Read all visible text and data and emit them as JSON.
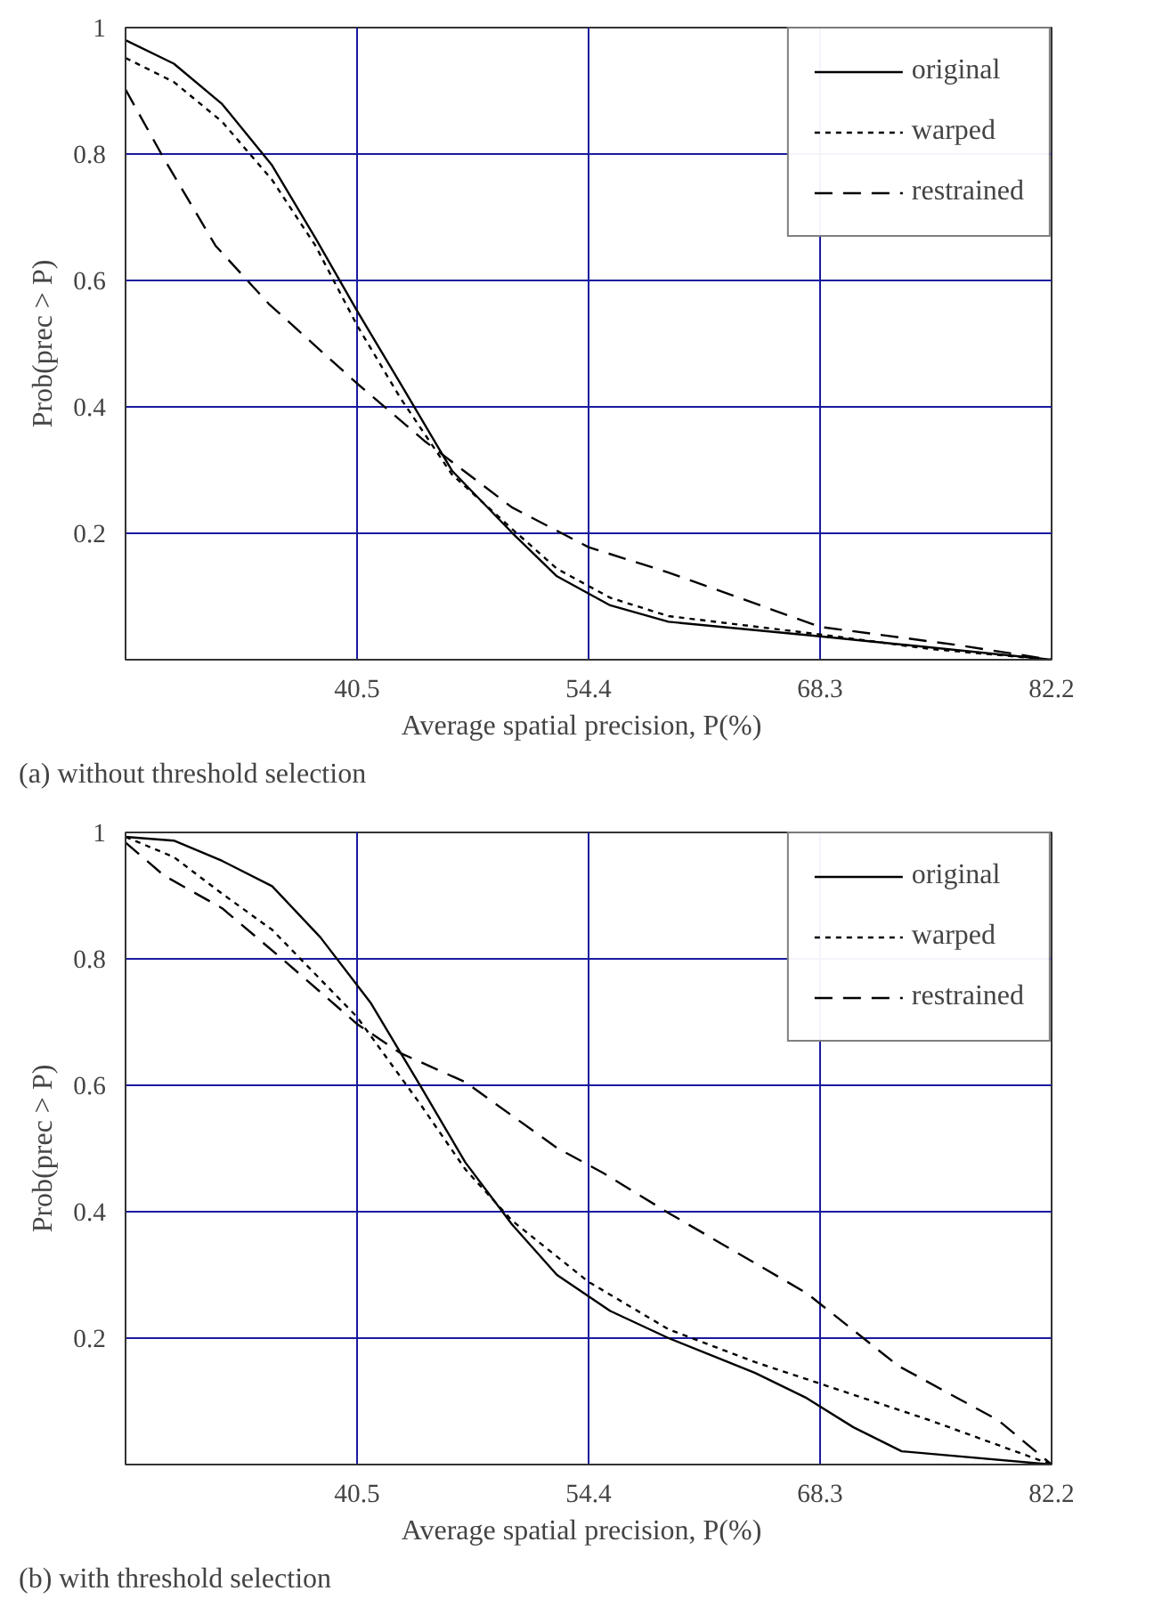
{
  "chart_data": [
    {
      "type": "line",
      "xlabel": "Average spatial  precision,  P(%)",
      "ylabel": "Prob(prec > P)",
      "annotations": [
        "(a) without threshold selection"
      ],
      "xlim": [
        26.6,
        82.2
      ],
      "ylim": [
        0,
        1
      ],
      "xticks": [
        40.5,
        54.4,
        68.3,
        82.2
      ],
      "yticks": [
        0.2,
        0.4,
        0.6,
        0.8,
        1
      ],
      "grid": true,
      "legend": "top right",
      "series": [
        {
          "name": "original",
          "color": "#000000",
          "line_style": "solid",
          "x": [
            26.6,
            29.5,
            32.4,
            35.4,
            38.0,
            40.5,
            43.1,
            46.2,
            49.8,
            52.5,
            55.7,
            59.2,
            68.3,
            82.2
          ],
          "values": [
            0.98,
            0.943,
            0.879,
            0.782,
            0.667,
            0.552,
            0.437,
            0.299,
            0.201,
            0.132,
            0.086,
            0.06,
            0.037,
            0
          ]
        },
        {
          "name": "warped",
          "color": "#000000",
          "line_style": "dotted",
          "x": [
            26.6,
            29.5,
            32.4,
            35.4,
            38.0,
            40.5,
            43.1,
            46.2,
            49.8,
            52.5,
            55.7,
            59.2,
            68.3,
            74.9,
            82.2
          ],
          "values": [
            0.952,
            0.914,
            0.851,
            0.759,
            0.655,
            0.529,
            0.414,
            0.293,
            0.207,
            0.144,
            0.098,
            0.069,
            0.04,
            0.017,
            0
          ]
        },
        {
          "name": "restrained",
          "color": "#000000",
          "line_style": "dashed",
          "x": [
            26.6,
            28.9,
            32.0,
            35.2,
            40.5,
            44.6,
            49.8,
            54.4,
            59.2,
            68.3,
            76.6,
            82.2
          ],
          "values": [
            0.902,
            0.793,
            0.655,
            0.563,
            0.437,
            0.345,
            0.241,
            0.178,
            0.138,
            0.052,
            0.023,
            0
          ]
        }
      ]
    },
    {
      "type": "line",
      "xlabel": "Average spatial  precision,  P(%)",
      "ylabel": "Prob(prec > P)",
      "annotations": [
        "(b) with threshold selection"
      ],
      "xlim": [
        26.6,
        82.2
      ],
      "ylim": [
        0,
        1
      ],
      "xticks": [
        40.5,
        54.4,
        68.3,
        82.2
      ],
      "yticks": [
        0.2,
        0.4,
        0.6,
        0.8,
        1
      ],
      "grid": true,
      "legend": "top right",
      "series": [
        {
          "name": "original",
          "color": "#000000",
          "line_style": "solid",
          "x": [
            26.6,
            29.5,
            32.4,
            35.4,
            38.3,
            41.3,
            44.3,
            47.0,
            49.8,
            52.5,
            55.7,
            59.2,
            64.4,
            67.5,
            70.3,
            73.2,
            82.2
          ],
          "values": [
            0.993,
            0.987,
            0.955,
            0.915,
            0.834,
            0.731,
            0.599,
            0.478,
            0.38,
            0.3,
            0.243,
            0.2,
            0.145,
            0.105,
            0.059,
            0.021,
            0
          ]
        },
        {
          "name": "warped",
          "color": "#000000",
          "line_style": "dotted",
          "x": [
            26.6,
            29.5,
            32.4,
            35.4,
            40.5,
            44.3,
            47.0,
            49.8,
            54.4,
            59.2,
            64.4,
            68.3,
            74.9,
            82.2
          ],
          "values": [
            0.993,
            0.961,
            0.903,
            0.846,
            0.708,
            0.57,
            0.467,
            0.386,
            0.289,
            0.214,
            0.162,
            0.128,
            0.07,
            0
          ]
        },
        {
          "name": "restrained",
          "color": "#000000",
          "line_style": "dashed",
          "x": [
            26.6,
            28.9,
            32.4,
            36.0,
            40.5,
            43.1,
            47.0,
            52.5,
            55.3,
            59.2,
            67.5,
            73.0,
            79.0,
            82.2
          ],
          "values": [
            0.984,
            0.932,
            0.88,
            0.8,
            0.697,
            0.651,
            0.605,
            0.501,
            0.461,
            0.398,
            0.271,
            0.156,
            0.07,
            0
          ]
        }
      ]
    }
  ]
}
